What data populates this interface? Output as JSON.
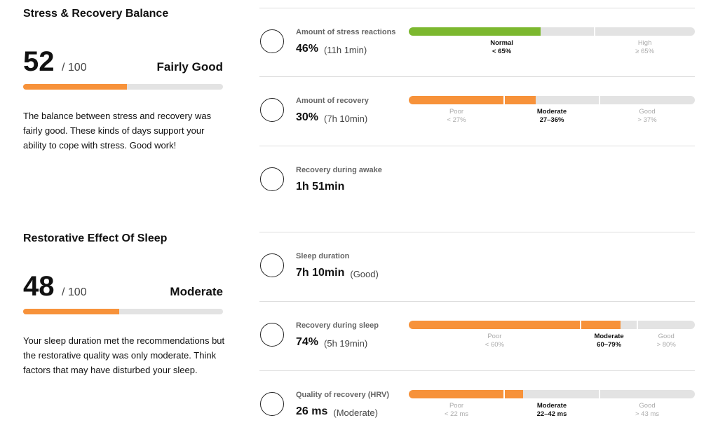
{
  "sections": [
    {
      "title": "Stress & Recovery Balance",
      "score": 52,
      "max": 100,
      "max_label": "/ 100",
      "rating": "Fairly Good",
      "color": "#f7923a",
      "description": "The balance between stress and recovery was fairly good. These kinds of days support your ability to cope with stress. Good work!"
    },
    {
      "title": "Restorative Effect Of Sleep",
      "score": 48,
      "max": 100,
      "max_label": "/ 100",
      "rating": "Moderate",
      "color": "#f7923a",
      "description": "Your sleep duration met the recommendations but the restorative quality was only moderate. Think factors that may have disturbed your sleep."
    }
  ],
  "metrics": [
    {
      "label": "Amount of stress reactions",
      "value": 46,
      "value_label": "46%",
      "detail": "(11h 1min)",
      "gauge": {
        "scale": "linear",
        "lim": [
          0,
          100
        ],
        "breaks": [
          65
        ],
        "active": 0,
        "color": "#7cb82f",
        "segments": [
          {
            "name": "Normal",
            "range": "< 65%"
          },
          {
            "name": "High",
            "range": "≥ 65%"
          }
        ]
      }
    },
    {
      "label": "Amount of recovery",
      "value": 30,
      "value_label": "30%",
      "detail": "(7h 10min)",
      "gauge": {
        "scale": "equal",
        "breaks": [
          27,
          36
        ],
        "active": 1,
        "color": "#f7923a",
        "segments": [
          {
            "name": "Poor",
            "range": "< 27%"
          },
          {
            "name": "Moderate",
            "range": "27–36%"
          },
          {
            "name": "Good",
            "range": "> 37%"
          }
        ]
      }
    },
    {
      "label": "Recovery during awake",
      "value_label": "1h 51min"
    },
    {
      "label": "Sleep duration",
      "value_label": "7h 10min",
      "detail": "(Good)"
    },
    {
      "label": "Recovery during sleep",
      "value": 74,
      "value_label": "74%",
      "detail": "(5h 19min)",
      "gauge": {
        "scale": "linear",
        "lim": [
          0,
          100
        ],
        "breaks": [
          60,
          80
        ],
        "active": 1,
        "color": "#f7923a",
        "segments": [
          {
            "name": "Poor",
            "range": "< 60%"
          },
          {
            "name": "Moderate",
            "range": "60–79%"
          },
          {
            "name": "Good",
            "range": "> 80%"
          }
        ]
      }
    },
    {
      "label": "Quality of recovery (HRV)",
      "value": 26,
      "value_label": "26 ms",
      "detail": "(Moderate)",
      "gauge": {
        "scale": "equal",
        "breaks": [
          22,
          42
        ],
        "active": 1,
        "color": "#f7923a",
        "segments": [
          {
            "name": "Poor",
            "range": "< 22 ms"
          },
          {
            "name": "Moderate",
            "range": "22–42 ms"
          },
          {
            "name": "Good",
            "range": "> 43 ms"
          }
        ]
      }
    }
  ]
}
